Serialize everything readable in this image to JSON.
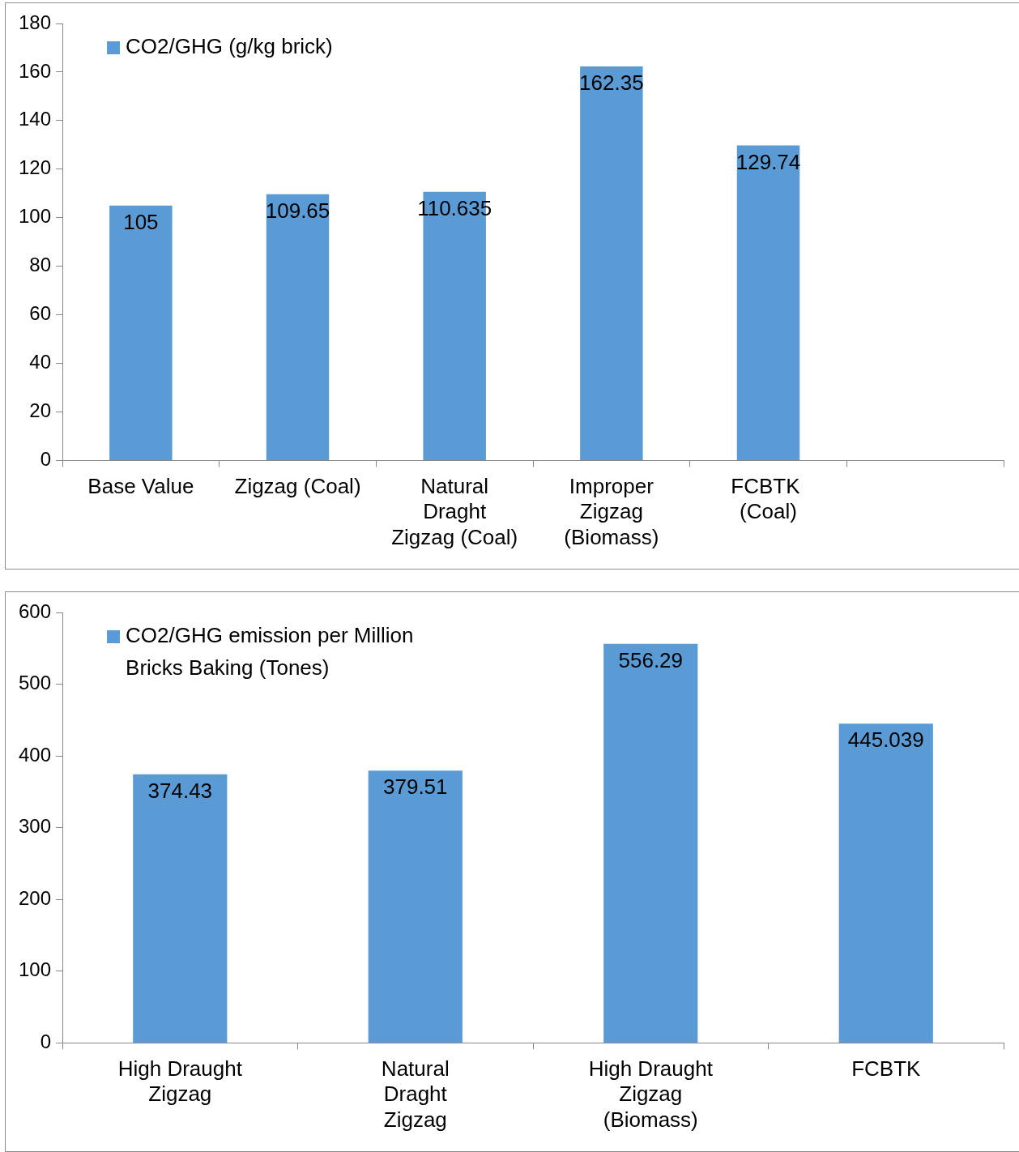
{
  "chart_data": [
    {
      "type": "bar",
      "categories": [
        "Base Value",
        "Zigzag (Coal)",
        "Natural Draght Zigzag (Coal)",
        "Improper Zigzag (Biomass)",
        "FCBTK  (Coal)",
        null
      ],
      "series": [
        {
          "name": "CO2/GHG (g/kg brick)",
          "color": "#5b9bd5",
          "values": [
            105,
            109.65,
            110.635,
            162.35,
            129.74,
            null
          ]
        }
      ],
      "ylim": [
        0,
        180
      ],
      "yticks": [
        0,
        20,
        40,
        60,
        80,
        100,
        120,
        140,
        160,
        180
      ],
      "grid": false,
      "legend": "top left",
      "data_labels": true
    },
    {
      "type": "bar",
      "categories": [
        "High Draught Zigzag",
        "Natural Draght Zigzag",
        "High Draught Zigzag (Biomass)",
        "FCBTK"
      ],
      "series": [
        {
          "name": "CO2/GHG emission per Million Bricks Baking (Tones)",
          "color": "#5b9bd5",
          "values": [
            374.43,
            379.51,
            556.29,
            445.039
          ]
        }
      ],
      "ylim": [
        0,
        600
      ],
      "yticks": [
        0,
        100,
        200,
        300,
        400,
        500,
        600
      ],
      "grid": false,
      "legend": "top left",
      "data_labels": true
    }
  ]
}
